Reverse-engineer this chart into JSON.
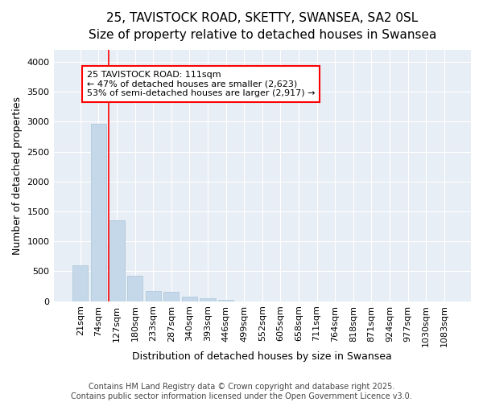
{
  "title_line1": "25, TAVISTOCK ROAD, SKETTY, SWANSEA, SA2 0SL",
  "title_line2": "Size of property relative to detached houses in Swansea",
  "xlabel": "Distribution of detached houses by size in Swansea",
  "ylabel": "Number of detached properties",
  "bar_labels": [
    "21sqm",
    "74sqm",
    "127sqm",
    "180sqm",
    "233sqm",
    "287sqm",
    "340sqm",
    "393sqm",
    "446sqm",
    "499sqm",
    "552sqm",
    "605sqm",
    "658sqm",
    "711sqm",
    "764sqm",
    "818sqm",
    "871sqm",
    "924sqm",
    "977sqm",
    "1030sqm",
    "1083sqm"
  ],
  "bar_values": [
    600,
    2970,
    1350,
    420,
    175,
    160,
    80,
    45,
    20,
    0,
    0,
    0,
    0,
    0,
    0,
    0,
    0,
    0,
    0,
    0,
    0
  ],
  "bar_color": "#c5d8ea",
  "bar_edge_color": "#a8c4d8",
  "ylim": [
    0,
    4200
  ],
  "yticks": [
    0,
    500,
    1000,
    1500,
    2000,
    2500,
    3000,
    3500,
    4000
  ],
  "red_line_x": 1.57,
  "annotation_text_line1": "25 TAVISTOCK ROAD: 111sqm",
  "annotation_text_line2": "← 47% of detached houses are smaller (2,623)",
  "annotation_text_line3": "53% of semi-detached houses are larger (2,917) →",
  "footer_line1": "Contains HM Land Registry data © Crown copyright and database right 2025.",
  "footer_line2": "Contains public sector information licensed under the Open Government Licence v3.0.",
  "fig_bg_color": "#ffffff",
  "plot_bg_color": "#e8eef5",
  "grid_color": "#ffffff",
  "title_fontsize": 11,
  "subtitle_fontsize": 10,
  "axis_label_fontsize": 9,
  "tick_fontsize": 8,
  "footer_fontsize": 7
}
